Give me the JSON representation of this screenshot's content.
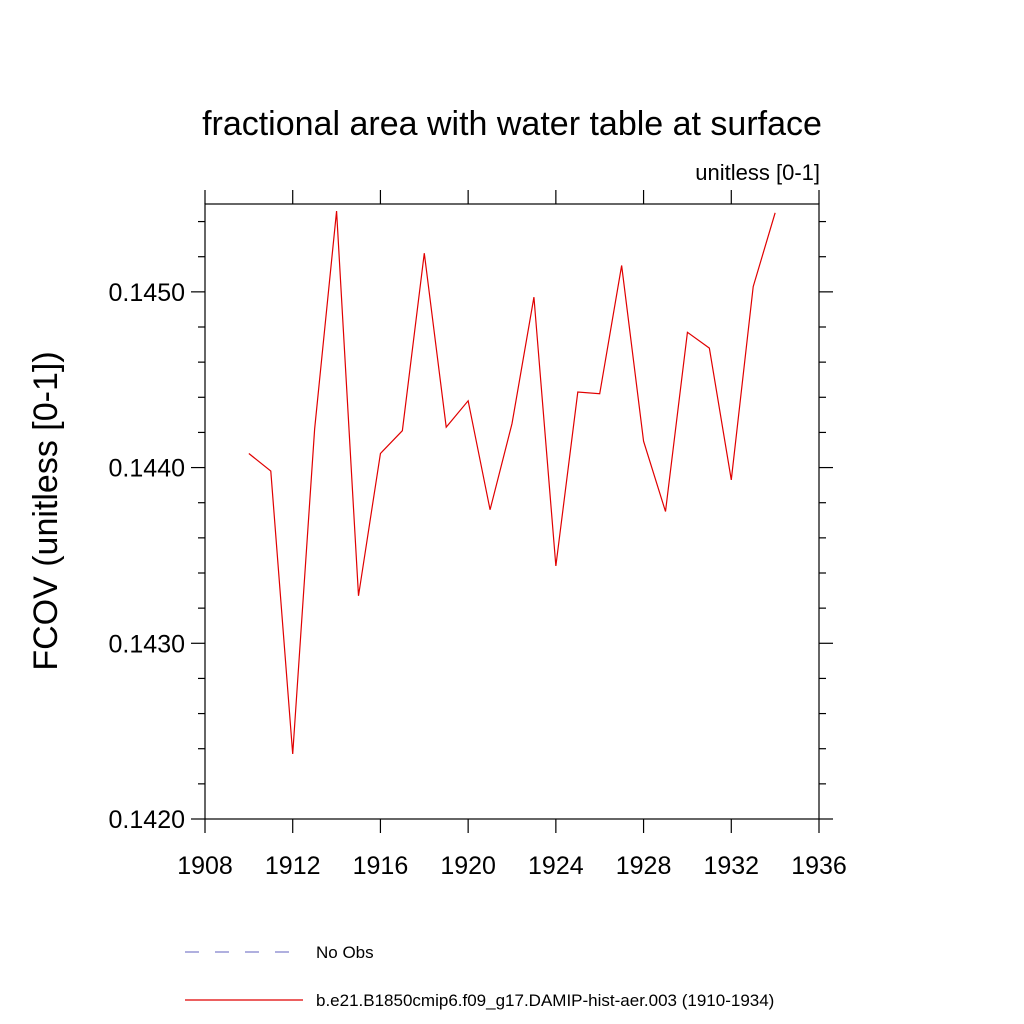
{
  "chart_data": {
    "type": "line",
    "title": "fractional area with water table at surface",
    "subtitle": "unitless [0-1]",
    "xlabel": "",
    "ylabel": "FCOV  (unitless [0-1])",
    "xlim": [
      1908,
      1936
    ],
    "ylim": [
      0.142,
      0.1455
    ],
    "x_ticks": [
      1908,
      1912,
      1916,
      1920,
      1924,
      1928,
      1932,
      1936
    ],
    "y_ticks": [
      0.142,
      0.143,
      0.144,
      0.145
    ],
    "y_tick_labels": [
      "0.1420",
      "0.1430",
      "0.1440",
      "0.1450"
    ],
    "grid": false,
    "legend_position": "bottom",
    "legend": [
      {
        "label": "No Obs",
        "color": "#8080cc",
        "style": "dashed"
      },
      {
        "label": "b.e21.B1850cmip6.f09_g17.DAMIP-hist-aer.003 (1910-1934)",
        "color": "#e00000",
        "style": "solid"
      }
    ],
    "series": [
      {
        "name": "b.e21.B1850cmip6.f09_g17.DAMIP-hist-aer.003 (1910-1934)",
        "color": "#e00000",
        "x": [
          1910,
          1911,
          1912,
          1913,
          1914,
          1915,
          1916,
          1917,
          1918,
          1919,
          1920,
          1921,
          1922,
          1923,
          1924,
          1925,
          1926,
          1927,
          1928,
          1929,
          1930,
          1931,
          1932,
          1933,
          1934
        ],
        "y": [
          0.14408,
          0.14398,
          0.14237,
          0.14422,
          0.14546,
          0.14327,
          0.14408,
          0.14421,
          0.14522,
          0.14423,
          0.14438,
          0.14376,
          0.14425,
          0.14497,
          0.14344,
          0.14443,
          0.14442,
          0.14515,
          0.14415,
          0.14375,
          0.14477,
          0.14468,
          0.14393,
          0.14503,
          0.14545
        ]
      }
    ]
  }
}
